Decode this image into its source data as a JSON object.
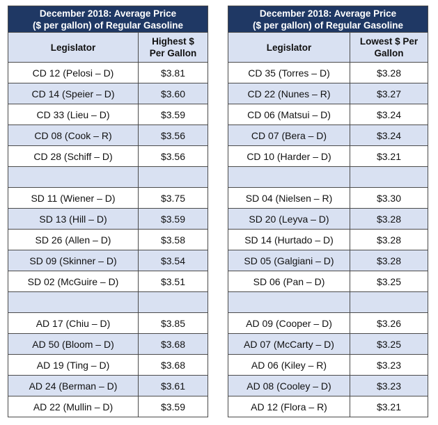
{
  "left_table": {
    "title_line1": "December 2018: Average Price",
    "title_line2": "($ per gallon) of Regular Gasoline",
    "col1_header": "Legislator",
    "col2_header_line1": "Highest $",
    "col2_header_line2": "Per Gallon",
    "rows": [
      {
        "legislator": "CD 12 (Pelosi – D)",
        "price": "$3.81"
      },
      {
        "legislator": "CD 14 (Speier – D)",
        "price": "$3.60"
      },
      {
        "legislator": "CD 33 (Lieu – D)",
        "price": "$3.59"
      },
      {
        "legislator": "CD 08 (Cook – R)",
        "price": "$3.56"
      },
      {
        "legislator": "CD 28 (Schiff – D)",
        "price": "$3.56"
      },
      {
        "legislator": "",
        "price": ""
      },
      {
        "legislator": "SD 11 (Wiener – D)",
        "price": "$3.75"
      },
      {
        "legislator": "SD 13 (Hill – D)",
        "price": "$3.59"
      },
      {
        "legislator": "SD 26 (Allen – D)",
        "price": "$3.58"
      },
      {
        "legislator": "SD 09 (Skinner – D)",
        "price": "$3.54"
      },
      {
        "legislator": "SD 02 (McGuire – D)",
        "price": "$3.51"
      },
      {
        "legislator": "",
        "price": ""
      },
      {
        "legislator": "AD 17 (Chiu – D)",
        "price": "$3.85"
      },
      {
        "legislator": "AD 50 (Bloom – D)",
        "price": "$3.68"
      },
      {
        "legislator": "AD 19 (Ting – D)",
        "price": "$3.68"
      },
      {
        "legislator": "AD 24 (Berman – D)",
        "price": "$3.61"
      },
      {
        "legislator": "AD 22 (Mullin – D)",
        "price": "$3.59"
      }
    ]
  },
  "right_table": {
    "title_line1": "December 2018: Average Price",
    "title_line2": "($ per gallon) of Regular Gasoline",
    "col1_header": "Legislator",
    "col2_header_line1": "Lowest $ Per",
    "col2_header_line2": "Gallon",
    "rows": [
      {
        "legislator": "CD 35 (Torres – D)",
        "price": "$3.28"
      },
      {
        "legislator": "CD 22 (Nunes – R)",
        "price": "$3.27"
      },
      {
        "legislator": "CD 06 (Matsui – D)",
        "price": "$3.24"
      },
      {
        "legislator": "CD 07 (Bera – D)",
        "price": "$3.24"
      },
      {
        "legislator": "CD 10 (Harder – D)",
        "price": "$3.21"
      },
      {
        "legislator": "",
        "price": ""
      },
      {
        "legislator": "SD 04 (Nielsen – R)",
        "price": "$3.30"
      },
      {
        "legislator": "SD 20 (Leyva – D)",
        "price": "$3.28"
      },
      {
        "legislator": "SD 14 (Hurtado – D)",
        "price": "$3.28"
      },
      {
        "legislator": "SD 05 (Galgiani – D)",
        "price": "$3.28"
      },
      {
        "legislator": "SD 06 (Pan – D)",
        "price": "$3.25"
      },
      {
        "legislator": "",
        "price": ""
      },
      {
        "legislator": "AD 09 (Cooper – D)",
        "price": "$3.26"
      },
      {
        "legislator": "AD 07 (McCarty – D)",
        "price": "$3.25"
      },
      {
        "legislator": "AD 06 (Kiley – R)",
        "price": "$3.23"
      },
      {
        "legislator": "AD 08 (Cooley – D)",
        "price": "$3.23"
      },
      {
        "legislator": "AD 12 (Flora – R)",
        "price": "$3.21"
      }
    ]
  },
  "colors": {
    "title_background": "#1f3864",
    "band_background": "#d9e1f2",
    "border": "#4a4a4a"
  }
}
